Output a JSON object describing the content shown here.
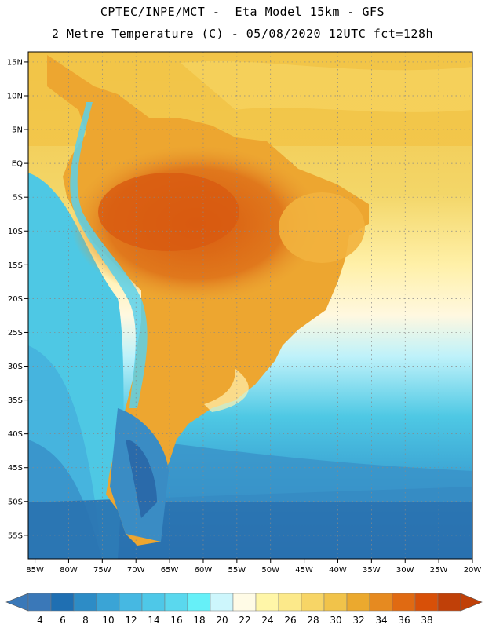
{
  "header": {
    "line1": "CPTEC/INPE/MCT -  Eta Model 15km - GFS",
    "line2": "2 Metre Temperature (C) - 05/08/2020 12UTC fct=128h"
  },
  "axes": {
    "lat_labels": [
      "15N",
      "10N",
      "5N",
      "EQ",
      "5S",
      "10S",
      "15S",
      "20S",
      "25S",
      "30S",
      "35S",
      "40S",
      "45S",
      "50S",
      "55S"
    ],
    "lat_values": [
      15,
      10,
      5,
      0,
      -5,
      -10,
      -15,
      -20,
      -25,
      -30,
      -35,
      -40,
      -45,
      -50,
      -55
    ],
    "lon_labels": [
      "85W",
      "80W",
      "75W",
      "70W",
      "65W",
      "60W",
      "55W",
      "50W",
      "45W",
      "40W",
      "35W",
      "30W",
      "25W",
      "20W"
    ],
    "lon_values": [
      -85,
      -80,
      -75,
      -70,
      -65,
      -60,
      -55,
      -50,
      -45,
      -40,
      -35,
      -30,
      -25,
      -20
    ],
    "lon_range": [
      -86,
      -20
    ],
    "lat_range": [
      -58.5,
      16.5
    ]
  },
  "colorbar": {
    "labels": [
      "4",
      "6",
      "8",
      "10",
      "12",
      "14",
      "16",
      "18",
      "20",
      "22",
      "24",
      "26",
      "28",
      "30",
      "32",
      "34",
      "36",
      "38"
    ],
    "colors": [
      "#3a78b8",
      "#1f6fb2",
      "#2d8cc6",
      "#3aa4d6",
      "#46b8e2",
      "#4ec8e8",
      "#5ad8ee",
      "#66f0f8",
      "#cdf6fc",
      "#fffbe6",
      "#fff6a8",
      "#fce98a",
      "#f7d566",
      "#f1c34a",
      "#eba92e",
      "#e68a20",
      "#e06a12",
      "#d85008",
      "#c04008"
    ]
  }
}
